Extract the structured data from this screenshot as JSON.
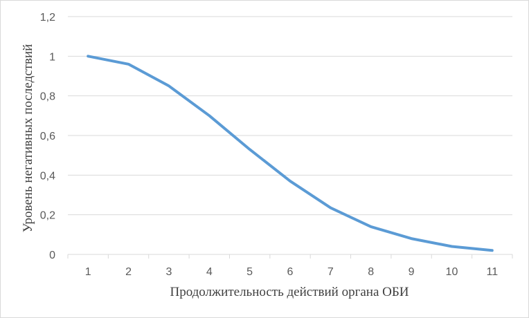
{
  "chart_data": {
    "type": "line",
    "title": "",
    "xlabel": "Продолжительность действий органа ОБИ",
    "ylabel": "Уровень негативных последствий",
    "categories": [
      "1",
      "2",
      "3",
      "4",
      "5",
      "6",
      "7",
      "8",
      "9",
      "10",
      "11"
    ],
    "x": [
      1,
      2,
      3,
      4,
      5,
      6,
      7,
      8,
      9,
      10,
      11
    ],
    "series": [
      {
        "values": [
          1.0,
          0.96,
          0.85,
          0.7,
          0.53,
          0.37,
          0.235,
          0.14,
          0.08,
          0.04,
          0.02
        ]
      }
    ],
    "y_ticks": [
      "0",
      "0,2",
      "0,4",
      "0,6",
      "0,8",
      "1",
      "1,2"
    ],
    "ylim": [
      0,
      1.2
    ],
    "grid": true,
    "legend": "none",
    "line_color": "#5b9bd5",
    "grid_color": "#d9d9d9"
  }
}
